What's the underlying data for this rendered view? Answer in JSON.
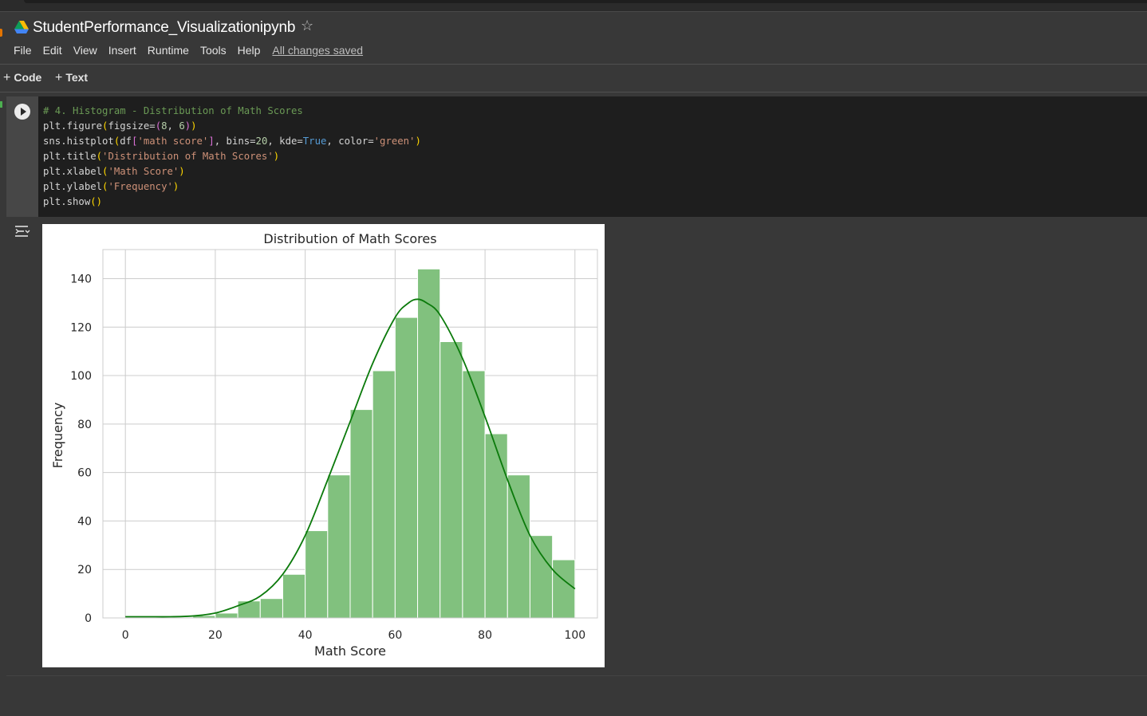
{
  "app": {
    "notebook_title": "StudentPerformance_Visualizationipynb",
    "save_status": "All changes saved"
  },
  "menu": [
    "File",
    "Edit",
    "View",
    "Insert",
    "Runtime",
    "Tools",
    "Help"
  ],
  "toolbar": {
    "add_code_label": "Code",
    "add_text_label": "Text"
  },
  "icons": {
    "logo": "google-drive-icon",
    "star": "star-icon",
    "run": "play-icon",
    "output": "output-toggle-icon"
  },
  "code_cell": {
    "lines": [
      "# 4. Histogram - Distribution of Math Scores",
      "plt.figure(figsize=(8, 6))",
      "sns.histplot(df['math score'], bins=20, kde=True, color='green')",
      "plt.title('Distribution of Math Scores')",
      "plt.xlabel('Math Score')",
      "plt.ylabel('Frequency')",
      "plt.show()"
    ]
  },
  "chart_data": {
    "type": "bar",
    "subtype": "histogram-with-kde",
    "title": "Distribution of Math Scores",
    "xlabel": "Math Score",
    "ylabel": "Frequency",
    "xlim": [
      -5,
      105
    ],
    "ylim": [
      0,
      152
    ],
    "xticks": [
      0,
      20,
      40,
      60,
      80,
      100
    ],
    "yticks": [
      0,
      20,
      40,
      60,
      80,
      100,
      120,
      140
    ],
    "grid": true,
    "bin_edges": [
      0,
      5,
      10,
      15,
      20,
      25,
      30,
      35,
      40,
      45,
      50,
      55,
      60,
      65,
      70,
      75,
      80,
      85,
      90,
      95,
      100
    ],
    "values": [
      0,
      0,
      0,
      1,
      2,
      7,
      8,
      18,
      36,
      59,
      86,
      102,
      124,
      144,
      114,
      102,
      76,
      59,
      34,
      24
    ],
    "kde": {
      "x": [
        0,
        5,
        10,
        15,
        20,
        25,
        30,
        35,
        40,
        45,
        50,
        55,
        60,
        63,
        65,
        67,
        70,
        75,
        80,
        85,
        90,
        95,
        100
      ],
      "y": [
        0.5,
        0.5,
        0.5,
        0.8,
        2,
        5,
        9,
        18,
        34,
        57,
        81,
        105,
        124,
        130,
        131.5,
        130,
        125,
        107,
        83,
        57,
        34,
        20,
        12
      ]
    },
    "bar_color": "#81c17e",
    "bar_edge_color": "#ffffff",
    "kde_color": "#0b7a0b"
  }
}
